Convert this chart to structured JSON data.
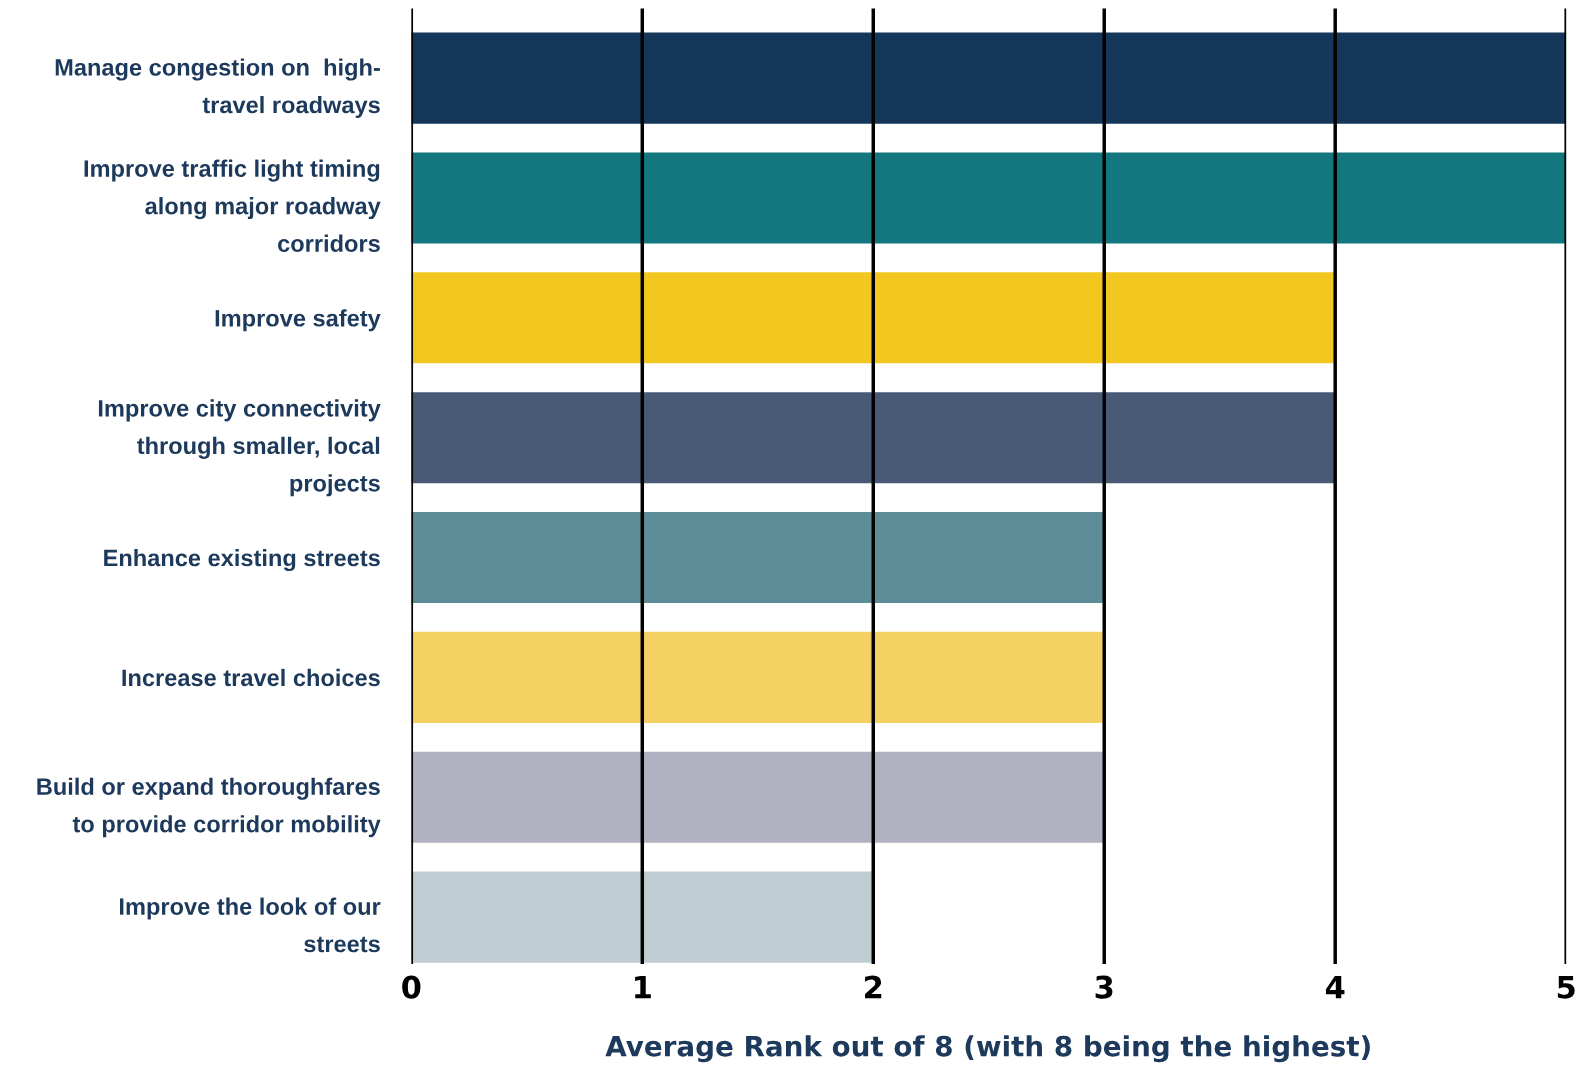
{
  "chart_data": {
    "type": "bar",
    "orientation": "horizontal",
    "categories": [
      "Manage congestion on  high-\ntravel roadways",
      "Improve traffic light timing\nalong major roadway\ncorridors",
      "Improve safety",
      "Improve city connectivity\nthrough smaller, local\nprojects",
      "Enhance existing streets",
      "Increase travel choices",
      "Build or expand thoroughfares\nto provide corridor mobility",
      "Improve the look of our\nstreets"
    ],
    "values": [
      5,
      5,
      4,
      4,
      3,
      3,
      3,
      2
    ],
    "colors": [
      "#14375a",
      "#13777f",
      "#f2c71f",
      "#495a76",
      "#5d8d96",
      "#f5d164",
      "#b0b1c1",
      "#bfcdd3"
    ],
    "xlabel": "Average Rank out of 8 (with 8 being the highest)",
    "xlim": [
      0,
      5
    ],
    "xticks": [
      0,
      1,
      2,
      3,
      4,
      5
    ],
    "grid": "x"
  }
}
